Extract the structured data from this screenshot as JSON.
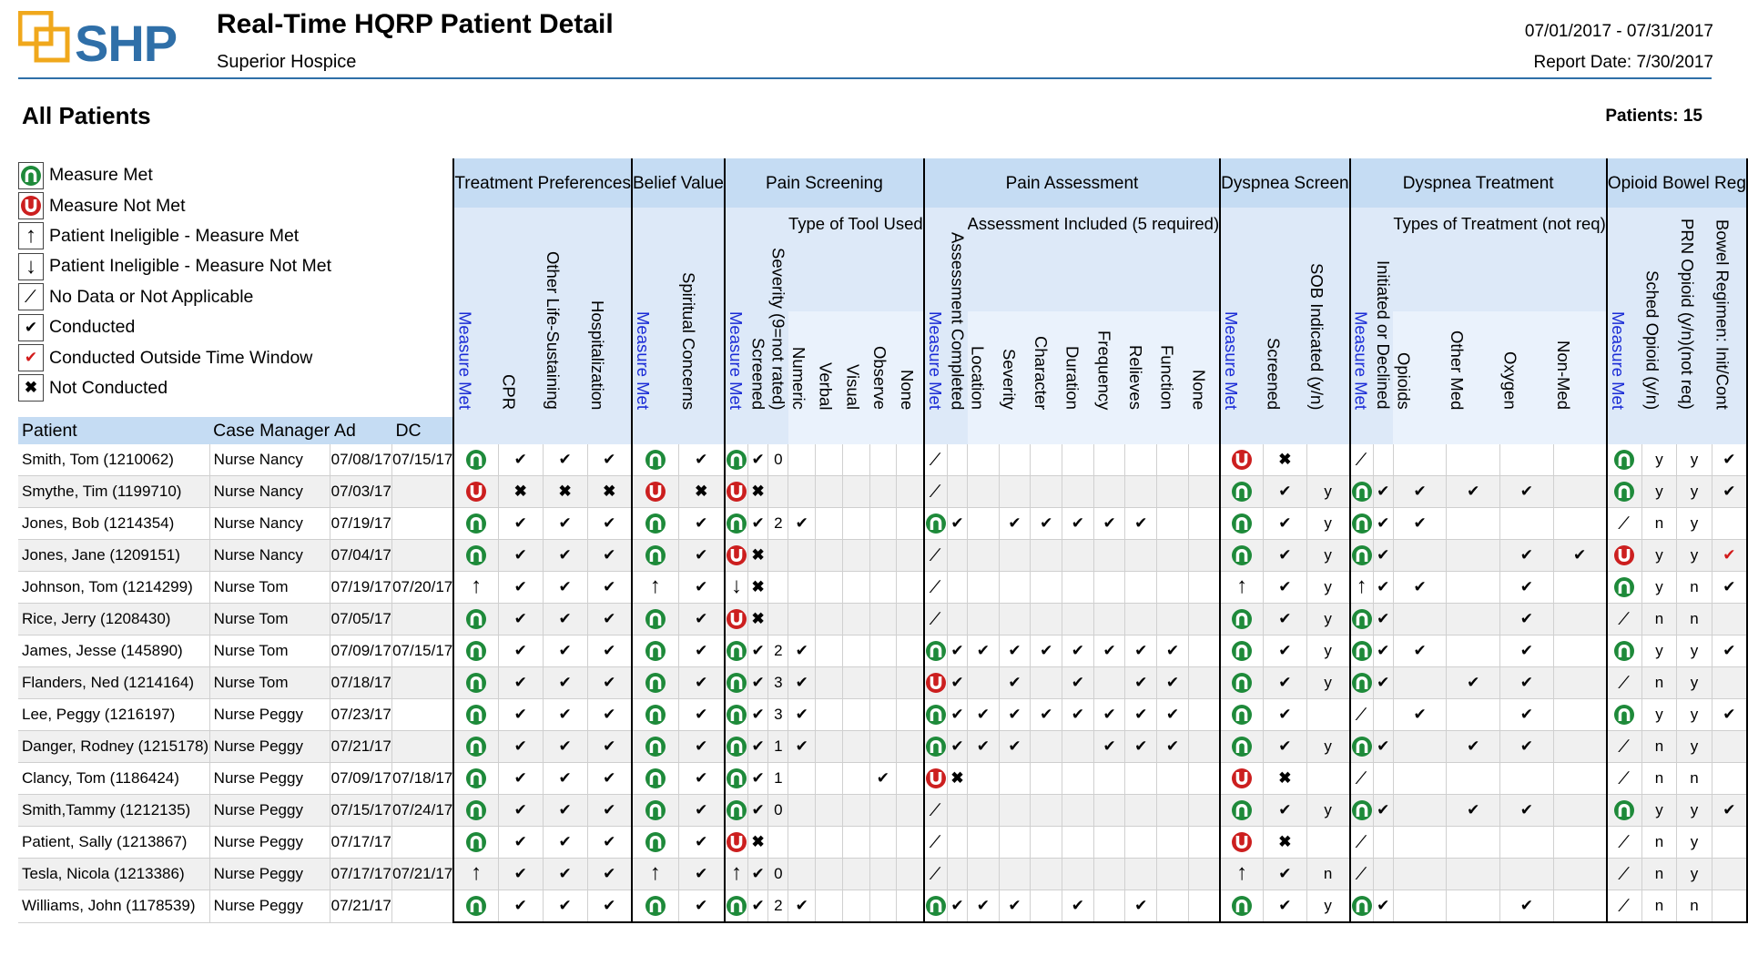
{
  "header": {
    "logo_text": "SHP",
    "title": "Real-Time HQRP Patient Detail",
    "organization": "Superior Hospice",
    "date_range": "07/01/2017 - 07/31/2017",
    "report_date": "Report Date: 7/30/2017",
    "section_title": "All Patients",
    "patient_count": "Patients: 15"
  },
  "colors": {
    "brand": "#2f6fa8",
    "met": "#1e8a3a",
    "not_met": "#cc1f1f",
    "header_bg": "#c5dcf3",
    "measure_met_text": "#1a2bd6"
  },
  "legend": [
    {
      "icon": "measure-met-icon",
      "label": "Measure Met"
    },
    {
      "icon": "measure-not-met-icon",
      "label": "Measure Not Met"
    },
    {
      "icon": "ineligible-met-icon",
      "label": "Patient Ineligible - Measure Met"
    },
    {
      "icon": "ineligible-not-met-icon",
      "label": "Patient Ineligible - Measure Not Met"
    },
    {
      "icon": "no-data-icon",
      "label": "No Data or Not Applicable"
    },
    {
      "icon": "conducted-icon",
      "label": "Conducted"
    },
    {
      "icon": "conducted-outside-icon",
      "label": "Conducted Outside Time Window"
    },
    {
      "icon": "not-conducted-icon",
      "label": "Not Conducted"
    }
  ],
  "columns": {
    "patient": "Patient",
    "case_manager": "Case Manager",
    "admit": "Ad",
    "discharge": "DC"
  },
  "groups": {
    "treatment_pref": "Treatment Preferences",
    "belief_value": "Belief Value",
    "pain_screening": "Pain Screening",
    "pain_assessment": "Pain Assessment",
    "dyspnea_screen": "Dyspnea Screen",
    "dyspnea_treatment": "Dyspnea Treatment",
    "opioid_bowel": "Opioid Bowel Reg"
  },
  "subgroups": {
    "tool_type": "Type of Tool Used",
    "assessment_included": "Assessment Included (5 required)",
    "types_treatment": "Types of Treatment (not req)"
  },
  "vcols": {
    "measure_met": "Measure Met",
    "cpr": "CPR",
    "other_life": "Other Life-Sustaining",
    "hospitalization": "Hospitalization",
    "spiritual": "Spiritual Concerns",
    "screened": "Screened",
    "severity": "Severity (9=not rated)",
    "numeric": "Numeric",
    "verbal": "Verbal",
    "visual": "Visual",
    "observe": "Observe",
    "none": "None",
    "assessment_completed": "Assessment Completed",
    "location": "Location",
    "severity2": "Severity",
    "character": "Character",
    "duration": "Duration",
    "frequency": "Frequency",
    "relieves": "Relieves",
    "function": "Function",
    "sob": "SOB Indicated (y/n)",
    "initiated": "Initiated or Declined",
    "opioids": "Opioids",
    "other_med": "Other Med",
    "oxygen": "Oxygen",
    "non_med": "Non-Med",
    "sched_opioid": "Sched Opioid (y/n)",
    "prn_opioid": "PRN Opioid (y/n)(not req)",
    "bowel_regimen": "Bowel Regimen: Init/Cont"
  },
  "rows": [
    {
      "patient": "Smith, Tom (1210062)",
      "cm": "Nurse Nancy",
      "ad": "07/08/17",
      "dc": "07/15/17",
      "cells": [
        "M",
        "c",
        "c",
        "c",
        "M",
        "c",
        "M",
        "c",
        "0",
        "",
        "",
        "",
        "",
        "",
        "S",
        "",
        "",
        "",
        "",
        "",
        "",
        "",
        "",
        "",
        "N",
        "x",
        "",
        "S",
        "",
        "",
        "",
        "",
        "",
        "M",
        "y",
        "y",
        "c"
      ]
    },
    {
      "patient": "Smythe, Tim (1199710)",
      "cm": "Nurse Nancy",
      "ad": "07/03/17",
      "dc": "",
      "cells": [
        "N",
        "x",
        "x",
        "x",
        "N",
        "x",
        "N",
        "x",
        "",
        "",
        "",
        "",
        "",
        "",
        "S",
        "",
        "",
        "",
        "",
        "",
        "",
        "",
        "",
        "",
        "M",
        "c",
        "y",
        "M",
        "c",
        "c",
        "c",
        "c",
        "",
        "M",
        "y",
        "y",
        "c"
      ]
    },
    {
      "patient": "Jones, Bob (1214354)",
      "cm": "Nurse Nancy",
      "ad": "07/19/17",
      "dc": "",
      "cells": [
        "M",
        "c",
        "c",
        "c",
        "M",
        "c",
        "M",
        "c",
        "2",
        "c",
        "",
        "",
        "",
        "",
        "M",
        "c",
        "",
        "c",
        "c",
        "c",
        "c",
        "c",
        "",
        "",
        "M",
        "c",
        "y",
        "M",
        "c",
        "c",
        "",
        "",
        "",
        "S",
        "n",
        "y",
        ""
      ]
    },
    {
      "patient": "Jones, Jane (1209151)",
      "cm": "Nurse Nancy",
      "ad": "07/04/17",
      "dc": "",
      "cells": [
        "M",
        "c",
        "c",
        "c",
        "M",
        "c",
        "N",
        "x",
        "",
        "",
        "",
        "",
        "",
        "",
        "S",
        "",
        "",
        "",
        "",
        "",
        "",
        "",
        "",
        "",
        "M",
        "c",
        "y",
        "M",
        "c",
        "",
        "",
        "c",
        "c",
        "N",
        "y",
        "y",
        "r"
      ]
    },
    {
      "patient": "Johnson, Tom (1214299)",
      "cm": "Nurse Tom",
      "ad": "07/19/17",
      "dc": "07/20/17",
      "cells": [
        "U",
        "c",
        "c",
        "c",
        "U",
        "c",
        "D",
        "x",
        "",
        "",
        "",
        "",
        "",
        "",
        "S",
        "",
        "",
        "",
        "",
        "",
        "",
        "",
        "",
        "",
        "U",
        "c",
        "y",
        "U",
        "c",
        "c",
        "",
        "c",
        "",
        "M",
        "y",
        "n",
        "c"
      ]
    },
    {
      "patient": "Rice, Jerry (1208430)",
      "cm": "Nurse Tom",
      "ad": "07/05/17",
      "dc": "",
      "cells": [
        "M",
        "c",
        "c",
        "c",
        "M",
        "c",
        "N",
        "x",
        "",
        "",
        "",
        "",
        "",
        "",
        "S",
        "",
        "",
        "",
        "",
        "",
        "",
        "",
        "",
        "",
        "M",
        "c",
        "y",
        "M",
        "c",
        "",
        "",
        "c",
        "",
        "S",
        "n",
        "n",
        ""
      ]
    },
    {
      "patient": "James, Jesse (145890)",
      "cm": "Nurse Tom",
      "ad": "07/09/17",
      "dc": "07/15/17",
      "cells": [
        "M",
        "c",
        "c",
        "c",
        "M",
        "c",
        "M",
        "c",
        "2",
        "c",
        "",
        "",
        "",
        "",
        "M",
        "c",
        "c",
        "c",
        "c",
        "c",
        "c",
        "c",
        "c",
        "",
        "M",
        "c",
        "y",
        "M",
        "c",
        "c",
        "",
        "c",
        "",
        "M",
        "y",
        "y",
        "c"
      ]
    },
    {
      "patient": "Flanders, Ned (1214164)",
      "cm": "Nurse Tom",
      "ad": "07/18/17",
      "dc": "",
      "cells": [
        "M",
        "c",
        "c",
        "c",
        "M",
        "c",
        "M",
        "c",
        "3",
        "c",
        "",
        "",
        "",
        "",
        "N",
        "c",
        "",
        "c",
        "",
        "c",
        "",
        "c",
        "c",
        "",
        "M",
        "c",
        "y",
        "M",
        "c",
        "",
        "c",
        "c",
        "",
        "S",
        "n",
        "y",
        ""
      ]
    },
    {
      "patient": "Lee, Peggy (1216197)",
      "cm": "Nurse Peggy",
      "ad": "07/23/17",
      "dc": "",
      "cells": [
        "M",
        "c",
        "c",
        "c",
        "M",
        "c",
        "M",
        "c",
        "3",
        "c",
        "",
        "",
        "",
        "",
        "M",
        "c",
        "c",
        "c",
        "c",
        "c",
        "c",
        "c",
        "c",
        "",
        "M",
        "c",
        "",
        "S",
        "",
        "c",
        "",
        "c",
        "",
        "M",
        "y",
        "y",
        "c"
      ]
    },
    {
      "patient": "Danger, Rodney (1215178)",
      "cm": "Nurse Peggy",
      "ad": "07/21/17",
      "dc": "",
      "cells": [
        "M",
        "c",
        "c",
        "c",
        "M",
        "c",
        "M",
        "c",
        "1",
        "c",
        "",
        "",
        "",
        "",
        "M",
        "c",
        "c",
        "c",
        "",
        "",
        "c",
        "c",
        "c",
        "",
        "M",
        "c",
        "y",
        "M",
        "c",
        "",
        "c",
        "c",
        "",
        "S",
        "n",
        "y",
        ""
      ]
    },
    {
      "patient": "Clancy, Tom (1186424)",
      "cm": "Nurse Peggy",
      "ad": "07/09/17",
      "dc": "07/18/17",
      "cells": [
        "M",
        "c",
        "c",
        "c",
        "M",
        "c",
        "M",
        "c",
        "1",
        "",
        "",
        "",
        "c",
        "",
        "N",
        "x",
        "",
        "",
        "",
        "",
        "",
        "",
        "",
        "",
        "N",
        "x",
        "",
        "S",
        "",
        "",
        "",
        "",
        "",
        "S",
        "n",
        "n",
        ""
      ]
    },
    {
      "patient": "Smith,Tammy (1212135)",
      "cm": "Nurse Peggy",
      "ad": "07/15/17",
      "dc": "07/24/17",
      "cells": [
        "M",
        "c",
        "c",
        "c",
        "M",
        "c",
        "M",
        "c",
        "0",
        "",
        "",
        "",
        "",
        "",
        "S",
        "",
        "",
        "",
        "",
        "",
        "",
        "",
        "",
        "",
        "M",
        "c",
        "y",
        "M",
        "c",
        "",
        "c",
        "c",
        "",
        "M",
        "y",
        "y",
        "c"
      ]
    },
    {
      "patient": "Patient, Sally (1213867)",
      "cm": "Nurse Peggy",
      "ad": "07/17/17",
      "dc": "",
      "cells": [
        "M",
        "c",
        "c",
        "c",
        "M",
        "c",
        "N",
        "x",
        "",
        "",
        "",
        "",
        "",
        "",
        "S",
        "",
        "",
        "",
        "",
        "",
        "",
        "",
        "",
        "",
        "N",
        "x",
        "",
        "S",
        "",
        "",
        "",
        "",
        "",
        "S",
        "n",
        "y",
        ""
      ]
    },
    {
      "patient": "Tesla, Nicola (1213386)",
      "cm": "Nurse Peggy",
      "ad": "07/17/17",
      "dc": "07/21/17",
      "cells": [
        "U",
        "c",
        "c",
        "c",
        "U",
        "c",
        "U",
        "c",
        "0",
        "",
        "",
        "",
        "",
        "",
        "S",
        "",
        "",
        "",
        "",
        "",
        "",
        "",
        "",
        "",
        "U",
        "c",
        "n",
        "S",
        "",
        "",
        "",
        "",
        "",
        "S",
        "n",
        "y",
        ""
      ]
    },
    {
      "patient": "Williams, John (1178539)",
      "cm": "Nurse Peggy",
      "ad": "07/21/17",
      "dc": "",
      "cells": [
        "M",
        "c",
        "c",
        "c",
        "M",
        "c",
        "M",
        "c",
        "2",
        "c",
        "",
        "",
        "",
        "",
        "M",
        "c",
        "c",
        "c",
        "",
        "c",
        "",
        "c",
        "",
        "",
        "M",
        "c",
        "y",
        "M",
        "c",
        "",
        "",
        "c",
        "",
        "S",
        "n",
        "n",
        ""
      ]
    }
  ]
}
